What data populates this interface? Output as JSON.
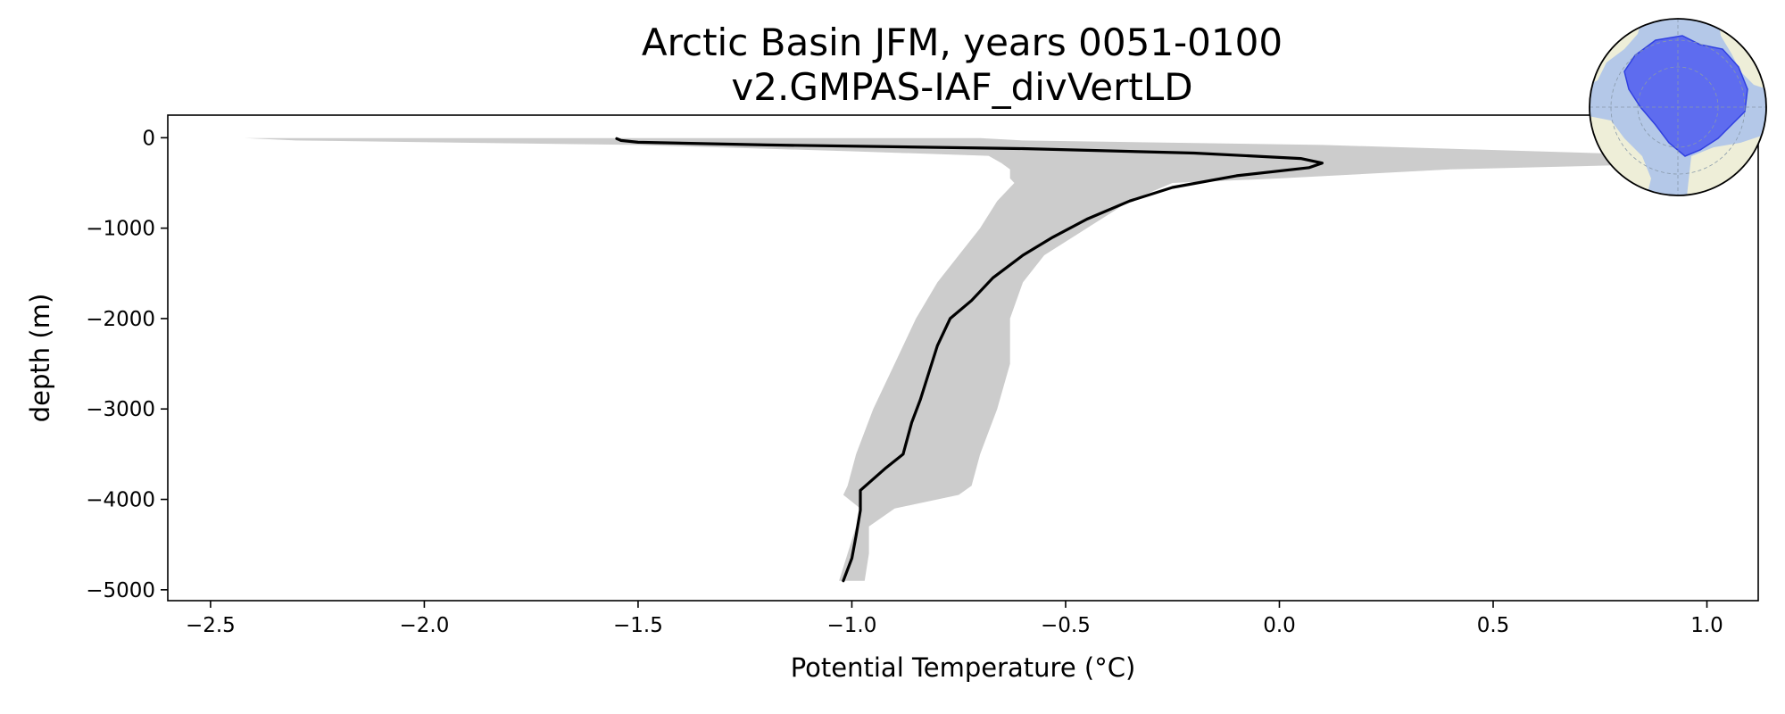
{
  "chart_data": {
    "type": "line",
    "title": "Arctic Basin JFM, years 0051-0100",
    "subtitle": "v2.GMPAS-IAF_divVertLD",
    "xlabel": "Potential Temperature (°C)",
    "ylabel": "depth (m)",
    "xlim": [
      -2.6,
      1.12
    ],
    "ylim": [
      -5120,
      250
    ],
    "xticks": [
      -2.5,
      -2.0,
      -1.5,
      -1.0,
      -0.5,
      0.0,
      0.5,
      1.0
    ],
    "xtick_labels": [
      "−2.5",
      "−2.0",
      "−1.5",
      "−1.0",
      "−0.5",
      "0.0",
      "0.5",
      "1.0"
    ],
    "yticks": [
      0,
      -1000,
      -2000,
      -3000,
      -4000,
      -5000
    ],
    "ytick_labels": [
      "0",
      "−1000",
      "−2000",
      "−3000",
      "−4000",
      "−5000"
    ],
    "grid": false,
    "series": [
      {
        "kind": "mean-line",
        "color": "#000000",
        "x": [
          -1.55,
          -1.54,
          -1.5,
          -1.2,
          -0.6,
          -0.2,
          0.05,
          0.1,
          0.07,
          -0.1,
          -0.25,
          -0.35,
          -0.45,
          -0.53,
          -0.6,
          -0.67,
          -0.72,
          -0.77,
          -0.8,
          -0.82,
          -0.84,
          -0.86,
          -0.88,
          -0.92,
          -0.98,
          -0.98,
          -0.99,
          -1.0,
          -1.02
        ],
        "y": [
          -10,
          -30,
          -50,
          -80,
          -120,
          -170,
          -230,
          -280,
          -330,
          -420,
          -550,
          -700,
          -900,
          -1100,
          -1300,
          -1550,
          -1800,
          -2000,
          -2300,
          -2600,
          -2900,
          -3150,
          -3500,
          -3650,
          -3900,
          -4120,
          -4400,
          -4650,
          -4900
        ]
      },
      {
        "kind": "range-band",
        "color": "#cccccc",
        "y": [
          -5,
          -30,
          -80,
          -150,
          -200,
          -280,
          -350,
          -450,
          -500,
          -700,
          -1000,
          -1300,
          -1600,
          -2000,
          -2500,
          -3000,
          -3500,
          -3850,
          -3950,
          -4100,
          -4300,
          -4600,
          -4900
        ],
        "x_min": [
          -2.42,
          -2.3,
          -1.5,
          -1.0,
          -0.68,
          -0.65,
          -0.63,
          -0.63,
          -0.62,
          -0.66,
          -0.7,
          -0.75,
          -0.8,
          -0.85,
          -0.9,
          -0.95,
          -0.99,
          -1.01,
          -1.02,
          -0.98,
          -0.99,
          -1.01,
          -1.03
        ],
        "x_max": [
          -0.7,
          -0.6,
          0.1,
          0.6,
          0.95,
          1.0,
          0.4,
          0.0,
          -0.25,
          -0.35,
          -0.45,
          -0.55,
          -0.6,
          -0.63,
          -0.63,
          -0.66,
          -0.7,
          -0.72,
          -0.75,
          -0.9,
          -0.96,
          -0.96,
          -0.97
        ]
      }
    ]
  },
  "inset_map": {
    "description_name": "arctic-basin-region-map",
    "ocean_color": "#b4c8e8",
    "land_color": "#eeeed8",
    "region_color": "#4f5cf0"
  }
}
